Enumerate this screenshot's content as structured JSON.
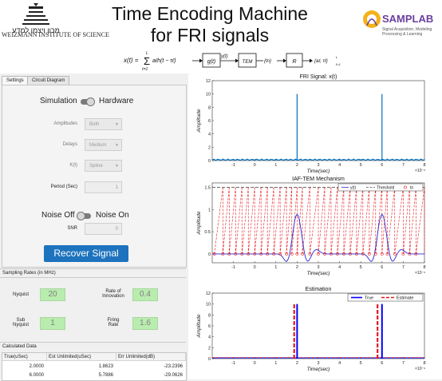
{
  "header": {
    "title_line1": "Time Encoding Machine",
    "title_line2": "for FRI signals",
    "institute": "WEIZMANN INSTITUTE OF SCIENCE",
    "lab_logo": "SAMPLAB",
    "lab_subtitle_1": "Signal Acquisition, Modeling",
    "lab_subtitle_2": "Processing & Learning",
    "block_diagram": {
      "signal": "x(t) =",
      "sum_upper": "L",
      "sum_lower": "ℓ=1",
      "sum_term": "aℓh(t − τℓ)",
      "filter": "g(t)",
      "filter_output": "y(t)",
      "tem": "TEM",
      "tem_output": "{tn}",
      "recovery": "R",
      "output": "{aℓ, τℓ}",
      "output_index": "L",
      "output_index_sub": "ℓ=1"
    }
  },
  "tabs": [
    "Settings",
    "Circuit Diagram"
  ],
  "settings": {
    "mode_left": "Simulation",
    "mode_right": "Hardware",
    "fields": [
      {
        "label": "Amplitudes",
        "value": "Both"
      },
      {
        "label": "Delays",
        "value": "Medium"
      },
      {
        "label": "K(t)",
        "value": "Spline"
      }
    ],
    "period_label": "Period (Sec)",
    "period_value": "1",
    "noise_left": "Noise Off",
    "noise_right": "Noise On",
    "snr_label": "SNR",
    "snr_value": "0",
    "recover_button": "Recover Signal"
  },
  "sampling_rates": {
    "title": "Sampling Rates (in MHz)",
    "nyquist_label": "Nyquist",
    "nyquist_value": "20",
    "innovation_label_1": "Rate of",
    "innovation_label_2": "Innovation",
    "innovation_value": "0.4",
    "sub_nyquist_label_1": "Sub",
    "sub_nyquist_label_2": "Nyquist",
    "sub_nyquist_value": "1",
    "firing_label_1": "Firing",
    "firing_label_2": "Rate",
    "firing_value": "1.6"
  },
  "calculated": {
    "title": "Calculated Data",
    "columns": [
      "True(uSec)",
      "Est Unlimited(uSec)",
      "Err Unlimited(dB)"
    ],
    "rows": [
      [
        "2.0000",
        "1.8623",
        "-23.2396"
      ],
      [
        "6.0000",
        "5.7886",
        "-29.0626"
      ]
    ]
  },
  "colors": {
    "accent": "#1d73bd",
    "green_field": "#b9ecaf",
    "signal": "#0072bd",
    "threshold": "#555555",
    "estimate": "#e31a1c",
    "true": "#0000ff"
  },
  "chart_data": [
    {
      "type": "line",
      "title": "FRI Signal: x(t)",
      "xlabel": "Time(sec)",
      "ylabel": "Amplitude",
      "x_exponent": "×10⁻⁶",
      "xlim": [
        -2,
        8
      ],
      "ylim": [
        0,
        12
      ],
      "xticks": [
        -1,
        0,
        1,
        2,
        3,
        4,
        5,
        6,
        7,
        8
      ],
      "yticks": [
        0,
        2,
        4,
        6,
        8,
        10,
        12
      ],
      "series": [
        {
          "values": [
            {
              "x": 2,
              "y": 10
            },
            {
              "x": 6,
              "y": 10
            }
          ]
        }
      ]
    },
    {
      "type": "line",
      "title": "IAF-TEM Mechanism",
      "xlabel": "Time(sec)",
      "ylabel": "Amplitude",
      "x_exponent": "×10⁻⁶",
      "xlim": [
        -2,
        8
      ],
      "ylim": [
        -0.2,
        1.6
      ],
      "xticks": [
        -1,
        0,
        1,
        2,
        3,
        4,
        5,
        6,
        7,
        8
      ],
      "yticks": [
        0,
        0.5,
        1,
        1.5
      ],
      "legend": [
        "y(t)",
        "Threshold",
        "tn"
      ],
      "legend_position": "top-right",
      "threshold": 1.5,
      "y_bumps": [
        {
          "x": 2,
          "peak": 0.9
        },
        {
          "x": 6,
          "peak": 0.9
        }
      ],
      "firing_times": [
        -1.9,
        -1.5,
        -1.2,
        -0.9,
        -0.6,
        -0.3,
        0.0,
        0.3,
        0.6,
        0.9,
        1.2,
        1.5,
        1.75,
        2.0,
        2.25,
        2.6,
        3.0,
        3.3,
        3.6,
        3.9,
        4.2,
        4.5,
        4.8,
        5.1,
        5.4,
        5.7,
        6.0,
        6.25,
        6.6,
        7.0,
        7.3,
        7.6
      ]
    },
    {
      "type": "bar",
      "title": "Estimation",
      "xlabel": "Time(sec)",
      "ylabel": "Amplitude",
      "x_exponent": "×10⁻⁶",
      "xlim": [
        -2,
        8
      ],
      "ylim": [
        0,
        12
      ],
      "xticks": [
        -1,
        0,
        1,
        2,
        3,
        4,
        5,
        6,
        7,
        8
      ],
      "yticks": [
        0,
        2,
        4,
        6,
        8,
        10,
        12
      ],
      "legend": [
        "True",
        "Estimate"
      ],
      "legend_position": "top-right",
      "series": [
        {
          "name": "True",
          "x": [
            2,
            6
          ],
          "values": [
            10,
            10
          ]
        },
        {
          "name": "Estimate",
          "x": [
            1.8623,
            5.7886
          ],
          "values": [
            10,
            10
          ]
        }
      ]
    }
  ]
}
